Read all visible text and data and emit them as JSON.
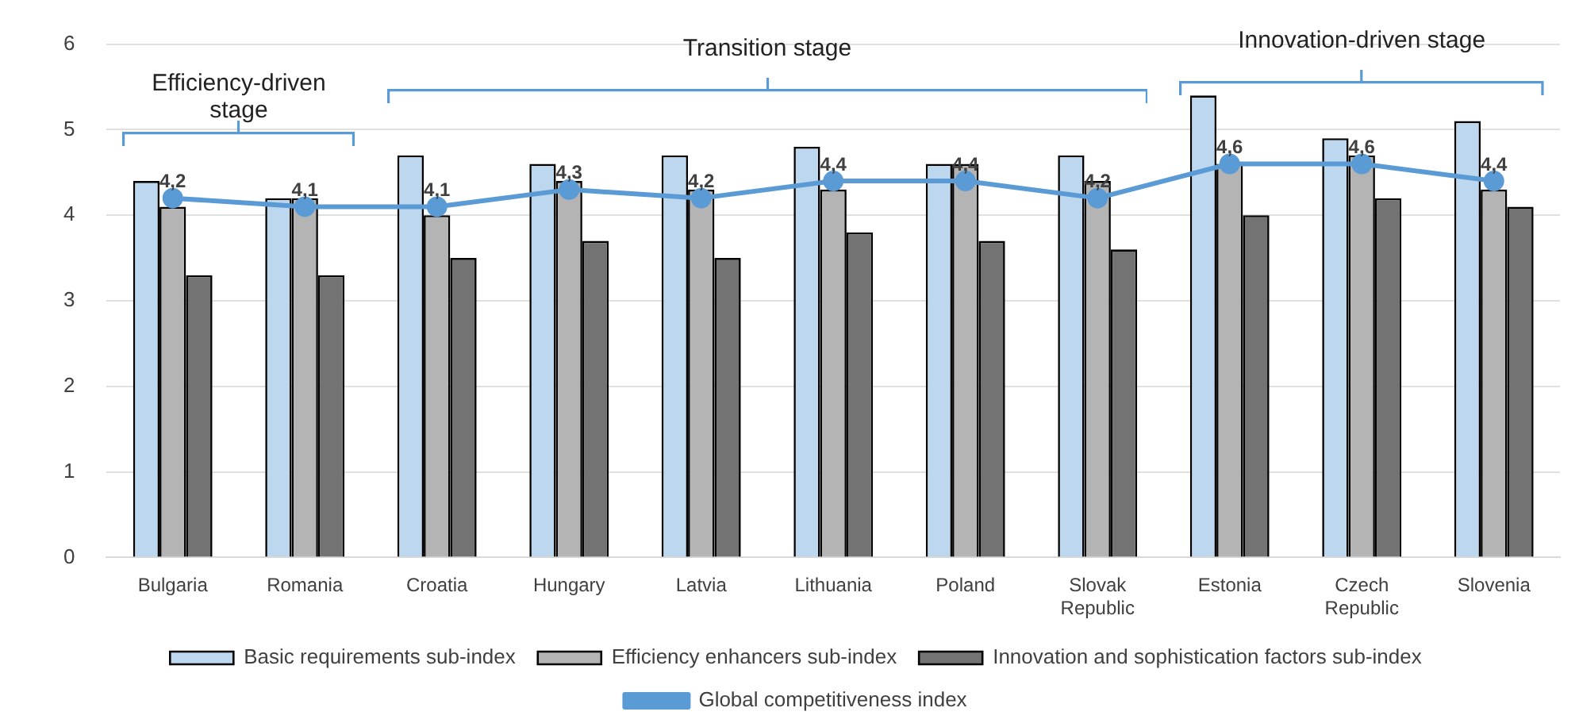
{
  "chart_data": {
    "type": "bar",
    "categories": [
      "Bulgaria",
      "Romania",
      "Croatia",
      "Hungary",
      "Latvia",
      "Lithuania",
      "Poland",
      "Slovak Republic",
      "Estonia",
      "Czech Republic",
      "Slovenia"
    ],
    "series": [
      {
        "name": "Basic requirements sub-index",
        "color": "#bdd7ee",
        "values": [
          4.4,
          4.2,
          4.7,
          4.6,
          4.7,
          4.8,
          4.6,
          4.7,
          5.4,
          4.9,
          5.1
        ]
      },
      {
        "name": "Efficiency enhancers sub-index",
        "color": "#b4b4b4",
        "values": [
          4.1,
          4.2,
          4.0,
          4.4,
          4.3,
          4.3,
          4.6,
          4.4,
          4.6,
          4.7,
          4.3
        ]
      },
      {
        "name": "Innovation and sophistication factors sub-index",
        "color": "#737373",
        "values": [
          3.3,
          3.3,
          3.5,
          3.7,
          3.5,
          3.8,
          3.7,
          3.6,
          4.0,
          4.2,
          4.1
        ]
      },
      {
        "name": "Global competitiveness index",
        "type": "line",
        "color": "#5b9bd5",
        "values": [
          4.2,
          4.1,
          4.1,
          4.3,
          4.2,
          4.4,
          4.4,
          4.2,
          4.6,
          4.6,
          4.4
        ],
        "value_labels": [
          "4,2",
          "4,1",
          "4,1",
          "4,3",
          "4,2",
          "4,4",
          "4,4",
          "4,2",
          "4,6",
          "4,6",
          "4,4"
        ]
      }
    ],
    "ylim": [
      0,
      6
    ],
    "yticks": [
      0,
      1,
      2,
      3,
      4,
      5,
      6
    ],
    "grid": "y",
    "legend": "bottom",
    "marker": "circle",
    "annotations": [
      "Efficiency-driven stage",
      "Transition stage",
      "Innovation-driven stage"
    ]
  }
}
